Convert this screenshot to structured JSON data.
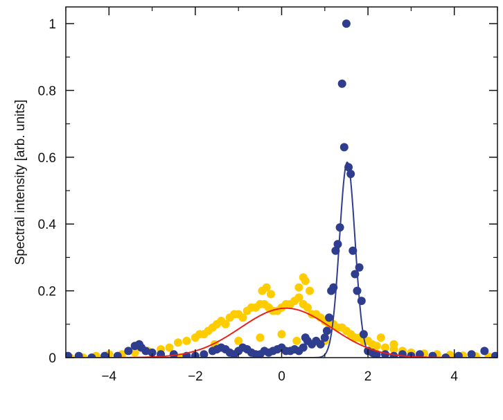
{
  "chart_data": {
    "type": "scatter",
    "title": "",
    "xlabel": "",
    "ylabel": "Spectral intensity [arb. units]",
    "xlim": [
      -5,
      5
    ],
    "ylim": [
      0,
      1.05
    ],
    "x_ticks": [
      -4,
      -2,
      0,
      2,
      4
    ],
    "y_ticks": [
      0,
      0.2,
      0.4,
      0.6,
      0.8,
      1
    ],
    "x_tick_labels": [
      "−4",
      "−2",
      "0",
      "2",
      "4"
    ],
    "y_tick_labels": [
      "0",
      "0.2",
      "0.4",
      "0.6",
      "0.8",
      "1"
    ],
    "grid": false,
    "colors": {
      "blue_points": "#2f3d8f",
      "yellow_points": "#ffcc00",
      "blue_fit": "#2f3d8f",
      "red_fit": "#e8221b",
      "axes": "#111111"
    },
    "series": [
      {
        "kind": "scatter",
        "color": "#ffcc00",
        "x": [
          -4.9,
          -4.6,
          -4.3,
          -4.0,
          -3.7,
          -3.4,
          -3.1,
          -2.8,
          -2.6,
          -2.4,
          -2.2,
          -2.0,
          -1.9,
          -1.8,
          -1.7,
          -1.6,
          -1.5,
          -1.4,
          -1.3,
          -1.2,
          -1.1,
          -1.0,
          -0.9,
          -0.8,
          -0.7,
          -0.6,
          -0.5,
          -0.4,
          -0.3,
          -0.2,
          -0.1,
          0.0,
          0.1,
          0.2,
          0.3,
          0.4,
          0.5,
          0.6,
          0.7,
          0.8,
          0.9,
          1.0,
          1.1,
          1.2,
          1.3,
          1.4,
          1.5,
          1.6,
          1.7,
          1.8,
          1.9,
          2.0,
          2.1,
          2.2,
          2.4,
          2.6,
          2.8,
          3.0,
          3.3,
          3.6,
          3.9,
          4.2,
          4.5,
          4.8,
          -0.45,
          -0.35,
          -0.25,
          0.5,
          0.55,
          0.65,
          0.4,
          -1.0,
          -0.5,
          0.0,
          1.0,
          -2.35,
          -1.55,
          0.35,
          2.3,
          2.6
        ],
        "y": [
          0.0,
          0.0,
          0.005,
          0.01,
          0.01,
          0.015,
          0.02,
          0.025,
          0.03,
          0.045,
          0.05,
          0.06,
          0.07,
          0.07,
          0.08,
          0.09,
          0.1,
          0.11,
          0.1,
          0.12,
          0.13,
          0.13,
          0.12,
          0.14,
          0.15,
          0.15,
          0.16,
          0.16,
          0.15,
          0.14,
          0.14,
          0.15,
          0.16,
          0.16,
          0.17,
          0.18,
          0.16,
          0.15,
          0.13,
          0.13,
          0.12,
          0.11,
          0.1,
          0.1,
          0.09,
          0.09,
          0.08,
          0.07,
          0.06,
          0.06,
          0.05,
          0.05,
          0.04,
          0.035,
          0.03,
          0.025,
          0.02,
          0.015,
          0.012,
          0.01,
          0.008,
          0.006,
          0.004,
          0.003,
          0.2,
          0.21,
          0.19,
          0.24,
          0.23,
          0.2,
          0.21,
          0.05,
          0.06,
          0.07,
          0.05,
          0.0,
          0.04,
          0.05,
          0.06,
          0.04
        ]
      },
      {
        "kind": "scatter",
        "color": "#2f3d8f",
        "x": [
          -4.95,
          -4.7,
          -4.4,
          -4.1,
          -3.8,
          -3.55,
          -3.4,
          -3.3,
          -3.25,
          -3.15,
          -3.0,
          -2.8,
          -2.5,
          -2.2,
          -2.0,
          -1.8,
          -1.6,
          -1.5,
          -1.4,
          -1.3,
          -1.2,
          -1.1,
          -1.0,
          -0.9,
          -0.8,
          -0.7,
          -0.6,
          -0.5,
          -0.4,
          -0.3,
          -0.2,
          -0.1,
          0.0,
          0.1,
          0.2,
          0.3,
          0.4,
          0.5,
          0.55,
          0.6,
          0.7,
          0.8,
          0.9,
          1.0,
          1.05,
          1.1,
          1.15,
          1.2,
          1.25,
          1.3,
          1.35,
          1.4,
          1.45,
          1.5,
          1.55,
          1.6,
          1.65,
          1.7,
          1.75,
          1.8,
          1.85,
          1.9,
          2.0,
          2.1,
          2.2,
          2.4,
          2.6,
          2.8,
          3.0,
          3.2,
          3.5,
          3.8,
          4.1,
          4.4,
          4.7,
          4.95
        ],
        "y": [
          0.005,
          0.005,
          0.0,
          0.005,
          0.005,
          0.02,
          0.035,
          0.04,
          0.03,
          0.02,
          0.015,
          0.01,
          0.01,
          0.005,
          0.005,
          0.01,
          0.02,
          0.025,
          0.03,
          0.025,
          0.015,
          0.01,
          0.02,
          0.03,
          0.025,
          0.015,
          0.01,
          0.01,
          0.02,
          0.015,
          0.02,
          0.025,
          0.03,
          0.02,
          0.02,
          0.025,
          0.02,
          0.03,
          0.06,
          0.05,
          0.04,
          0.05,
          0.04,
          0.06,
          0.08,
          0.12,
          0.2,
          0.21,
          0.32,
          0.34,
          0.39,
          0.82,
          0.63,
          1.0,
          0.57,
          0.55,
          0.32,
          0.25,
          0.2,
          0.27,
          0.17,
          0.07,
          0.02,
          0.015,
          0.01,
          0.01,
          0.005,
          0.01,
          0.005,
          0.01,
          0.005,
          0.0,
          0.005,
          0.01,
          0.02,
          0.005
        ]
      },
      {
        "kind": "curve",
        "color": "#2f3d8f",
        "model": "gaussian",
        "amplitude": 0.585,
        "center": 1.52,
        "sigma": 0.18
      },
      {
        "kind": "curve",
        "color": "#e8221b",
        "model": "gaussian",
        "amplitude": 0.148,
        "center": 0.1,
        "sigma": 1.05
      }
    ]
  }
}
